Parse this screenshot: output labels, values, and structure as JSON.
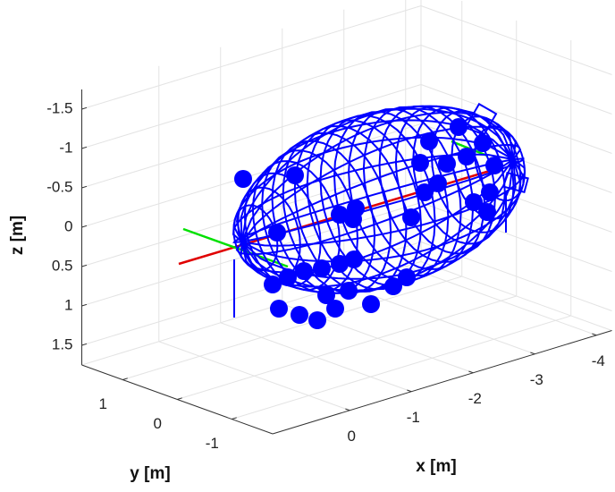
{
  "chart_data": {
    "type": "wireframe3d",
    "xlabel": "x [m]",
    "ylabel": "y [m]",
    "zlabel": "z [m]",
    "xlim": [
      -4.25,
      1.25
    ],
    "ylim": [
      -1.75,
      1.75
    ],
    "zlim": [
      -1.75,
      1.75
    ],
    "zdir": "reverse",
    "xticks": [
      0,
      -1,
      -2,
      -3,
      -4
    ],
    "yticks": [
      1,
      0,
      -1
    ],
    "zticks": [
      -1.5,
      -1,
      -0.5,
      0,
      0.5,
      1,
      1.5
    ],
    "grid": true
  }
}
